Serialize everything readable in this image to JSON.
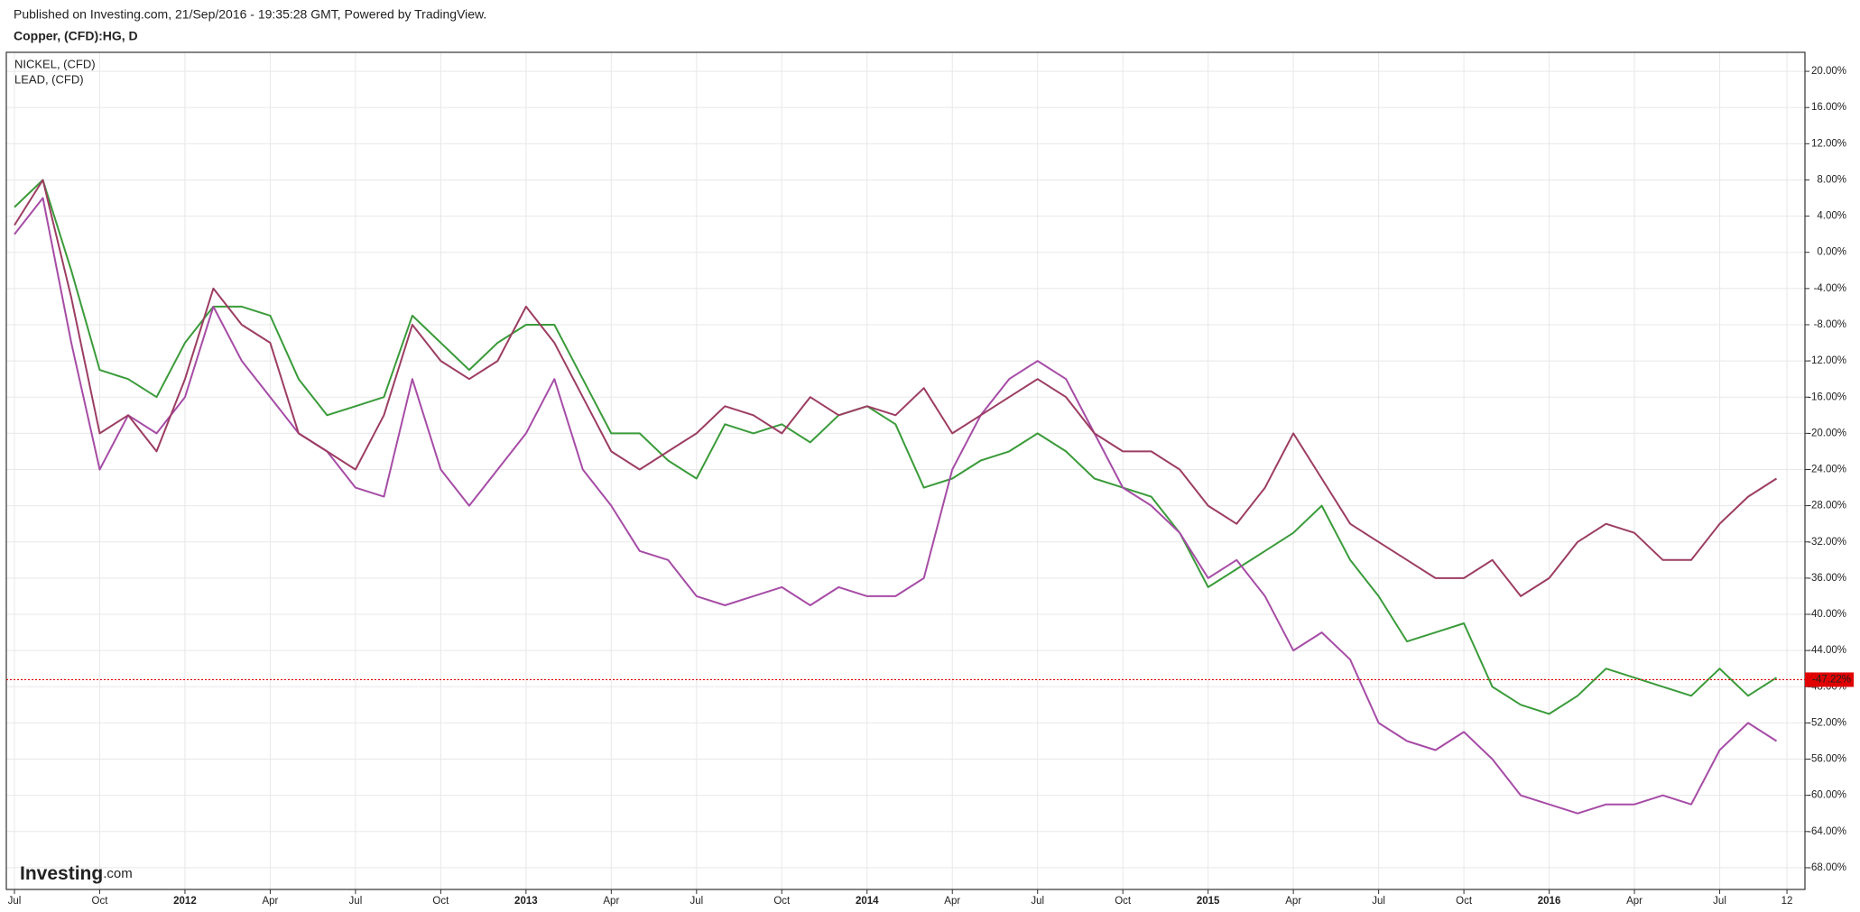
{
  "header": "Published on Investing.com, 21/Sep/2016 - 19:35:28 GMT, Powered by TradingView.",
  "logo": [
    "Investing",
    ".com"
  ],
  "chart_data": {
    "type": "line",
    "title": "Copper, (CFD):HG, D",
    "x": [
      "2011-07",
      "2011-08",
      "2011-09",
      "2011-10",
      "2011-11",
      "2011-12",
      "2012-01",
      "2012-02",
      "2012-03",
      "2012-04",
      "2012-05",
      "2012-06",
      "2012-07",
      "2012-08",
      "2012-09",
      "2012-10",
      "2012-11",
      "2012-12",
      "2013-01",
      "2013-02",
      "2013-03",
      "2013-04",
      "2013-05",
      "2013-06",
      "2013-07",
      "2013-08",
      "2013-09",
      "2013-10",
      "2013-11",
      "2013-12",
      "2014-01",
      "2014-02",
      "2014-03",
      "2014-04",
      "2014-05",
      "2014-06",
      "2014-07",
      "2014-08",
      "2014-09",
      "2014-10",
      "2014-11",
      "2014-12",
      "2015-01",
      "2015-02",
      "2015-03",
      "2015-04",
      "2015-05",
      "2015-06",
      "2015-07",
      "2015-08",
      "2015-09",
      "2015-10",
      "2015-11",
      "2015-12",
      "2016-01",
      "2016-02",
      "2016-03",
      "2016-04",
      "2016-05",
      "2016-06",
      "2016-07",
      "2016-08",
      "2016-09"
    ],
    "series": [
      {
        "color": "#3a9b3a",
        "values": [
          5,
          8,
          -2,
          -13,
          -14,
          -16,
          -10,
          -6,
          -6,
          -7,
          -14,
          -18,
          -17,
          -16,
          -7,
          -10,
          -13,
          -10,
          -8,
          -8,
          -14,
          -20,
          -20,
          -23,
          -25,
          -19,
          -20,
          -19,
          -21,
          -18,
          -17,
          -19,
          -26,
          -25,
          -23,
          -22,
          -20,
          -22,
          -25,
          -26,
          -27,
          -31,
          -37,
          -35,
          -33,
          -31,
          -28,
          -34,
          -38,
          -43,
          -42,
          -41,
          -48,
          -50,
          -51,
          -49,
          -46,
          -47,
          -48,
          -49,
          -46,
          -49,
          -47
        ]
      },
      {
        "name": "NICKEL,  (CFD)",
        "color": "#a64ca6",
        "values": [
          2,
          6,
          -10,
          -24,
          -18,
          -20,
          -16,
          -6,
          -12,
          -16,
          -20,
          -22,
          -26,
          -27,
          -14,
          -24,
          -28,
          -24,
          -20,
          -14,
          -24,
          -28,
          -33,
          -34,
          -38,
          -39,
          -38,
          -37,
          -39,
          -37,
          -38,
          -38,
          -36,
          -24,
          -18,
          -14,
          -12,
          -14,
          -20,
          -26,
          -28,
          -31,
          -36,
          -34,
          -38,
          -44,
          -42,
          -45,
          -52,
          -54,
          -55,
          -53,
          -56,
          -60,
          -61,
          -62,
          -61,
          -61,
          -60,
          -61,
          -55,
          -52,
          -54
        ]
      },
      {
        "name": "LEAD,  (CFD)",
        "color": "#9c3d62",
        "values": [
          3,
          8,
          -5,
          -20,
          -18,
          -22,
          -14,
          -4,
          -8,
          -10,
          -20,
          -22,
          -24,
          -18,
          -8,
          -12,
          -14,
          -12,
          -6,
          -10,
          -16,
          -22,
          -24,
          -22,
          -20,
          -17,
          -18,
          -20,
          -16,
          -18,
          -17,
          -18,
          -15,
          -20,
          -18,
          -16,
          -14,
          -16,
          -20,
          -22,
          -22,
          -24,
          -28,
          -30,
          -26,
          -20,
          -25,
          -30,
          -32,
          -34,
          -36,
          -36,
          -34,
          -38,
          -36,
          -32,
          -30,
          -31,
          -34,
          -34,
          -30,
          -27,
          -25
        ]
      }
    ],
    "last_value": {
      "value": -47.22,
      "label": "-47.22%"
    },
    "last_color": "#e00000",
    "xlim": [
      "2011-07",
      "2016-10"
    ],
    "xticks": [
      {
        "value": "2011-07",
        "label": "Jul"
      },
      {
        "value": "2011-10",
        "label": "Oct"
      },
      {
        "value": "2012-01",
        "label": "2012"
      },
      {
        "value": "2012-04",
        "label": "Apr"
      },
      {
        "value": "2012-07",
        "label": "Jul"
      },
      {
        "value": "2012-10",
        "label": "Oct"
      },
      {
        "value": "2013-01",
        "label": "2013"
      },
      {
        "value": "2013-04",
        "label": "Apr"
      },
      {
        "value": "2013-07",
        "label": "Jul"
      },
      {
        "value": "2013-10",
        "label": "Oct"
      },
      {
        "value": "2014-01",
        "label": "2014"
      },
      {
        "value": "2014-04",
        "label": "Apr"
      },
      {
        "value": "2014-07",
        "label": "Jul"
      },
      {
        "value": "2014-10",
        "label": "Oct"
      },
      {
        "value": "2015-01",
        "label": "2015"
      },
      {
        "value": "2015-04",
        "label": "Apr"
      },
      {
        "value": "2015-07",
        "label": "Jul"
      },
      {
        "value": "2015-10",
        "label": "Oct"
      },
      {
        "value": "2016-01",
        "label": "2016"
      },
      {
        "value": "2016-04",
        "label": "Apr"
      },
      {
        "value": "2016-07",
        "label": "Jul"
      },
      {
        "value": "2016-09-12",
        "label": "12"
      }
    ],
    "ylim": [
      -70.4,
      22.1
    ],
    "yticks": [
      {
        "value": 20,
        "label": "20.00%"
      },
      {
        "value": 16,
        "label": "16.00%"
      },
      {
        "value": 12,
        "label": "12.00%"
      },
      {
        "value": 8,
        "label": "8.00%"
      },
      {
        "value": 4,
        "label": "4.00%"
      },
      {
        "value": 0,
        "label": "0.00%"
      },
      {
        "value": -4,
        "label": "-4.00%"
      },
      {
        "value": -8,
        "label": "-8.00%"
      },
      {
        "value": -12,
        "label": "-12.00%"
      },
      {
        "value": -16,
        "label": "-16.00%"
      },
      {
        "value": -20,
        "label": "-20.00%"
      },
      {
        "value": -24,
        "label": "-24.00%"
      },
      {
        "value": -28,
        "label": "-28.00%"
      },
      {
        "value": -32,
        "label": "-32.00%"
      },
      {
        "value": -36,
        "label": "-36.00%"
      },
      {
        "value": -40,
        "label": "-40.00%"
      },
      {
        "value": -44,
        "label": "-44.00%"
      },
      {
        "value": -48,
        "label": "-48.00%"
      },
      {
        "value": -52,
        "label": "-52.00%"
      },
      {
        "value": -56,
        "label": "-56.00%"
      },
      {
        "value": -60,
        "label": "-60.00%"
      },
      {
        "value": -64,
        "label": "-64.00%"
      },
      {
        "value": -68,
        "label": "-68.00%"
      }
    ],
    "grid": true,
    "legend": "top-left"
  }
}
